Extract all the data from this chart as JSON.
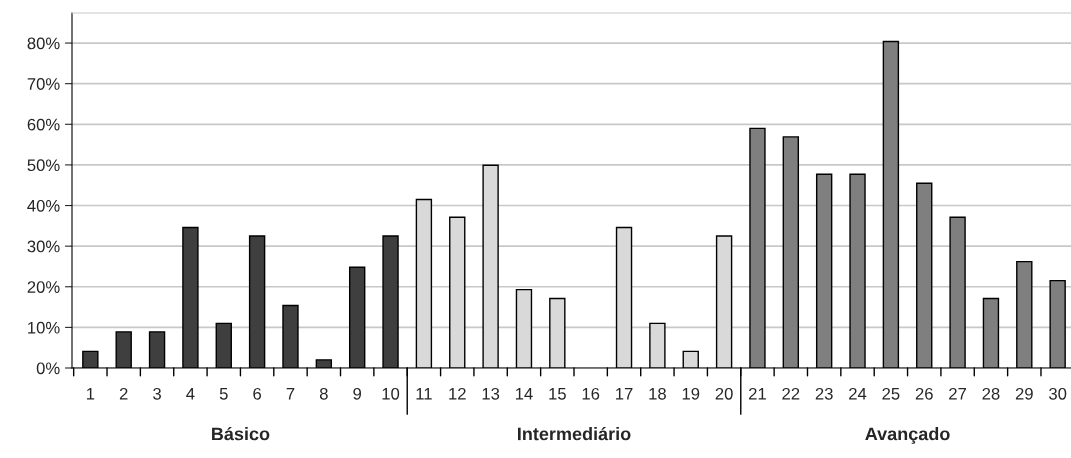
{
  "chart_data": {
    "type": "bar",
    "categories": [
      "1",
      "2",
      "3",
      "4",
      "5",
      "6",
      "7",
      "8",
      "9",
      "10",
      "11",
      "12",
      "13",
      "14",
      "15",
      "16",
      "17",
      "18",
      "19",
      "20",
      "21",
      "22",
      "23",
      "24",
      "25",
      "26",
      "27",
      "28",
      "29",
      "30"
    ],
    "series": [
      {
        "color": "#3f3f3f",
        "values": [
          4.1,
          8.9,
          8.9,
          34.6,
          11.0,
          32.5,
          15.4,
          2.0,
          24.8,
          32.5,
          null,
          null,
          null,
          null,
          null,
          null,
          null,
          null,
          null,
          null,
          null,
          null,
          null,
          null,
          null,
          null,
          null,
          null,
          null,
          null
        ]
      },
      {
        "color": "#d9d9d9",
        "values": [
          null,
          null,
          null,
          null,
          null,
          null,
          null,
          null,
          null,
          null,
          41.5,
          37.1,
          49.9,
          19.3,
          17.1,
          null,
          34.6,
          11.0,
          4.1,
          32.5,
          null,
          null,
          null,
          null,
          null,
          null,
          null,
          null,
          null,
          null
        ]
      },
      {
        "color": "#7f7f7f",
        "values": [
          null,
          null,
          null,
          null,
          null,
          null,
          null,
          null,
          null,
          null,
          null,
          null,
          null,
          null,
          null,
          null,
          null,
          null,
          null,
          null,
          59.0,
          56.9,
          47.7,
          47.7,
          80.4,
          45.5,
          37.1,
          17.1,
          26.2,
          21.5
        ]
      }
    ],
    "ylim": [
      0,
      87.4
    ],
    "yticks": [
      {
        "value": 0,
        "label": "0%"
      },
      {
        "value": 10,
        "label": "10%"
      },
      {
        "value": 20,
        "label": "20%"
      },
      {
        "value": 30,
        "label": "30%"
      },
      {
        "value": 40,
        "label": "40%"
      },
      {
        "value": 50,
        "label": "50%"
      },
      {
        "value": 60,
        "label": "60%"
      },
      {
        "value": 70,
        "label": "70%"
      },
      {
        "value": 80,
        "label": "80%"
      }
    ],
    "annotations": [
      "Básico",
      "Intermediário",
      "Avançado"
    ],
    "grid": "y",
    "legend": false
  }
}
